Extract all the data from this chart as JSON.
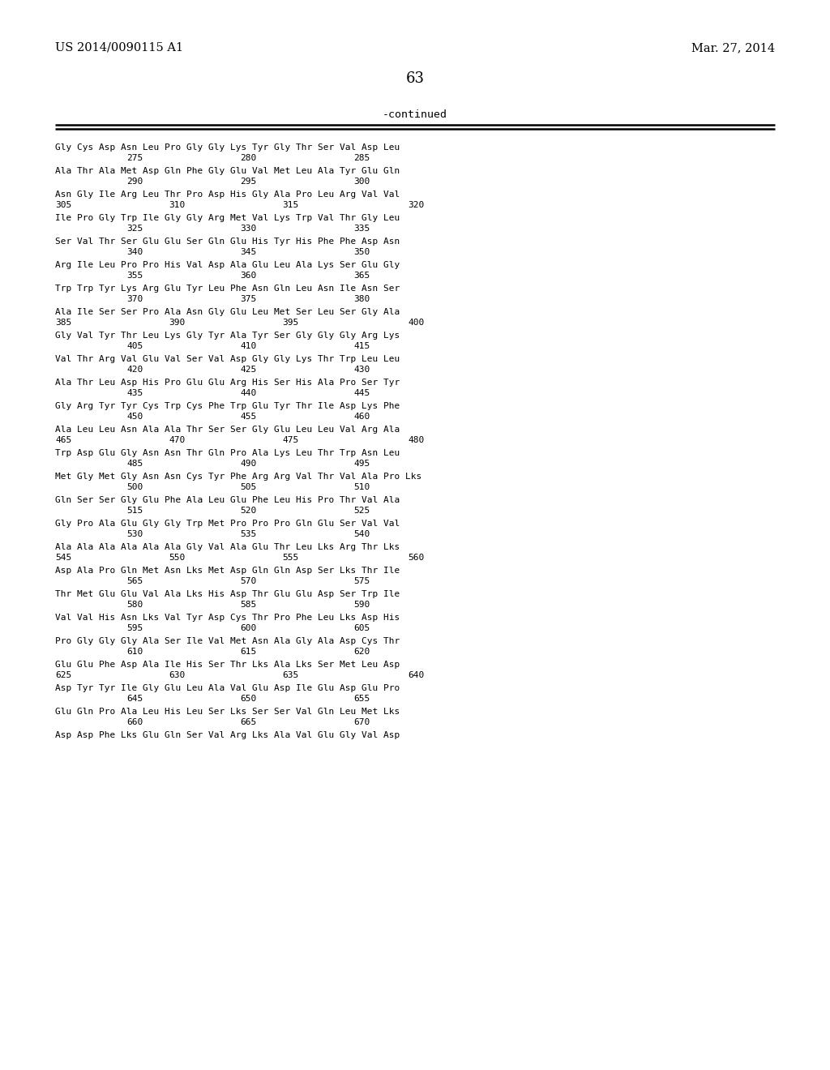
{
  "header_left": "US 2014/0090115 A1",
  "header_right": "Mar. 27, 2014",
  "page_number": "63",
  "continued_label": "-continued",
  "bg": "#ffffff",
  "fg": "#000000",
  "aa_lines": [
    "Gly Cys Asp Asn Leu Pro Gly Gly Lys Tyr Gly Thr Ser Val Asp Leu",
    "Ala Thr Ala Met Asp Gln Phe Gly Glu Val Met Leu Ala Tyr Glu Gln",
    "Asn Gly Ile Arg Leu Thr Pro Asp His Gly Ala Pro Leu Arg Val Val",
    "Ile Pro Gly Trp Ile Gly Gly Arg Met Val Lys Trp Val Thr Gly Leu",
    "Ser Val Thr Ser Glu Glu Ser Gln Glu His Tyr His Phe Phe Asp Asn",
    "Arg Ile Leu Pro Pro His Val Asp Ala Glu Leu Ala Lys Ser Glu Gly",
    "Trp Trp Tyr Lys Arg Glu Tyr Leu Phe Asn Gln Leu Asn Ile Asn Ser",
    "Ala Ile Ser Ser Pro Ala Asn Gly Glu Leu Met Ser Leu Ser Gly Ala",
    "Gly Val Tyr Thr Leu Lys Gly Tyr Ala Tyr Ser Gly Gly Gly Arg Lys",
    "Val Thr Arg Val Glu Val Ser Val Asp Gly Gly Lys Thr Trp Leu Leu",
    "Ala Thr Leu Asp His Pro Glu Glu Arg His Ser His Ala Pro Ser Tyr",
    "Gly Arg Tyr Tyr Cys Trp Cys Phe Trp Glu Tyr Thr Ile Asp Lys Phe",
    "Ala Leu Leu Asn Ala Ala Thr Ser Ser Gly Glu Leu Leu Val Arg Ala",
    "Trp Asp Glu Gly Asn Asn Thr Gln Pro Ala Lys Leu Thr Trp Asn Leu",
    "Met Gly Met Gly Asn Asn Cys Tyr Phe Arg Arg Val Thr Val Ala Pro Lys",
    "Gln Ser Ser Gly Glu Phe Ala Leu Glu Phe Leu His Pro Thr Val Ala",
    "Gly Pro Ala Glu Gly Gly Trp Met Pro Pro Pro Gln Glu Ser Val Val",
    "Ala Ala Ala Ala Ala Ala Gly Val Ala Glu Thr Leu Lys Arg Thr Lys",
    "Asp Ala Pro Gln Met Asn Lys Met Asp Gln Gln Asp Ser Lys Thr Ile",
    "Thr Met Glu Glu Val Ala Lys His Asp Thr Glu Glu Asp Ser Trp Ile",
    "Val Val His Asn Lys Val Tyr Asp Cys Thr Pro Phe Leu Lys Asp His",
    "Pro Gly Gly Gly Ala Ser Ile Val Met Asn Ala Gly Ala Asp Cys Thr",
    "Glu Glu Phe Asp Ala Ile His Ser Thr Lys Ala Lys Ser Met Leu Asp",
    "Asp Tyr Tyr Ile Gly Glu Leu Ala Val Glu Asp Ile Glu Asp Glu Pro",
    "Glu Gln Pro Ala Leu His Leu Ser Lys Ser Ser Val Gln Leu Gln Met Lys",
    "Asp Asp Phe Lys Glu Gln Ser Val Arg Lys Ala Val Glu Gly Val Asp"
  ],
  "num_rows": [
    [
      false,
      "275",
      "280",
      "285",
      null
    ],
    [
      false,
      "290",
      "295",
      "300",
      null
    ],
    [
      true,
      "305",
      "310",
      "315",
      "320"
    ],
    [
      false,
      "325",
      "330",
      "335",
      null
    ],
    [
      false,
      "340",
      "345",
      "350",
      null
    ],
    [
      false,
      "355",
      "360",
      "365",
      null
    ],
    [
      false,
      "370",
      "375",
      "380",
      null
    ],
    [
      true,
      "385",
      "390",
      "395",
      "400"
    ],
    [
      false,
      "405",
      "410",
      "415",
      null
    ],
    [
      false,
      "420",
      "425",
      "430",
      null
    ],
    [
      false,
      "435",
      "440",
      "445",
      null
    ],
    [
      false,
      "450",
      "455",
      "460",
      null
    ],
    [
      true,
      "465",
      "470",
      "475",
      "480"
    ],
    [
      false,
      "485",
      "490",
      "495",
      null
    ],
    [
      false,
      "500",
      "505",
      "510",
      null
    ],
    [
      false,
      "515",
      "520",
      "525",
      null
    ],
    [
      false,
      "530",
      "535",
      "540",
      null
    ],
    [
      true,
      "545",
      "550",
      "555",
      "560"
    ],
    [
      false,
      "565",
      "570",
      "575",
      null
    ],
    [
      false,
      "580",
      "585",
      "590",
      null
    ],
    [
      false,
      "595",
      "600",
      "605",
      null
    ],
    [
      false,
      "610",
      "615",
      "620",
      null
    ],
    [
      true,
      "625",
      "630",
      "635",
      "640"
    ],
    [
      false,
      "645",
      "650",
      "655",
      null
    ],
    [
      false,
      "660",
      "665",
      "670",
      null
    ],
    [
      false,
      null,
      null,
      null,
      null
    ]
  ],
  "exact_aa_lines": [
    "Gly Cys Asp Asn Leu Pro Gly Gly Lys Tyr Gly Thr Ser Val Asp Leu",
    "Ala Thr Ala Met Asp Gln Phe Gly Glu Val Met Leu Ala Tyr Glu Gln",
    "Asn Gly Ile Arg Leu Thr Pro Asp His Gly Ala Pro Leu Arg Val Val",
    "Ile Pro Gly Trp Ile Gly Gly Arg Met Val Lys Trp Val Thr Gly Leu",
    "Ser Val Thr Ser Glu Glu Ser Gln Glu His Tyr His Phe Phe Asp Asn",
    "Arg Ile Leu Pro Pro His Val Asp Ala Glu Leu Ala Lys Ser Glu Gly",
    "Trp Trp Tyr Lys Arg Glu Tyr Leu Phe Asn Gln Leu Asn Ile Asn Ser",
    "Ala Ile Ser Ser Pro Ala Asn Gly Glu Leu Met Ser Leu Ser Gly Ala",
    "Gly Val Tyr Thr Leu Lys Gly Tyr Ala Tyr Ser Gly Gly Gly Arg Lks",
    "Val Thr Arg Val Glu Val Ser Val Asp Gly Gly Lys Thr Trp Leu Leu",
    "Ala Thr Leu Asp His Pro Glu Glu Arg His Ser His Ala Pro Ser Tyr",
    "Gly Arg Tyr Tyr Cys Trp Cys Phe Trp Glu Tyr Thr Ile Asp Lys Phe",
    "Ala Leu Leu Asn Ala Ala Thr Ser Ser Gly Glu Leu Leu Val Arg Ala",
    "Trp Asp Glu Gly Asn Asn Thr Gln Pro Ala Lys Leu Thr Trp Asn Leu",
    "Met Gly Met Gly Asn Asn Cys Tyr Phe Arg Arg Val Thr Val Ala Pro Lks",
    "Gln Ser Ser Gly Glu Phe Ala Leu Glu Phe Leu His Pro Thr Val Ala",
    "Gly Pro Ala Glu Gly Gly Trp Met Pro Pro Pro Gln Glu Ser Val Val",
    "Ala Ala Ala Ala Ala Ala Gly Val Ala Glu Thr Leu Lks Arg Thr Lks",
    "Asp Ala Pro Gln Met Asn Lks Met Asp Gln Gln Asp Ser Lks Thr Ile",
    "Thr Met Glu Glu Val Ala Lks His Asp Thr Glu Glu Asp Ser Trp Ile",
    "Val Val His Asn Lks Val Tyr Asp Cys Thr Pro Phe Leu Lks Asp His",
    "Pro Gly Gly Gly Ala Ser Ile Val Met Asn Ala Gly Ala Asp Cys Thr",
    "Glu Glu Phe Asp Ala Ile His Ser Thr Lks Ala Lks Ser Met Leu Asp",
    "Asp Tyr Tyr Ile Gly Glu Leu Ala Val Glu Asp Ile Glu Asp Glu Pro",
    "Glu Gln Pro Ala Leu His Leu Ser Lks Ser Ser Val Gln Leu Gln Met Lks",
    "Asp Asp Phe Lks Glu Gln Ser Val Arg Lks Ala Val Glu Gly Val Asp"
  ]
}
